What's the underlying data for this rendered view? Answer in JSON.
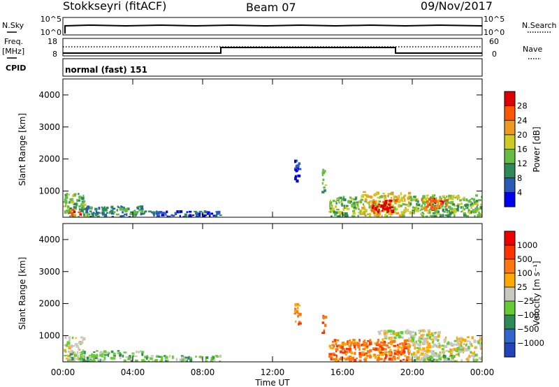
{
  "header": {
    "station": "Stokkseyri (fitACF)",
    "beam": "Beam 07",
    "date": "09/Nov/2017"
  },
  "strips": {
    "nsky_label": "N.Sky",
    "nsky_ticks": [
      "10^5",
      "10^0"
    ],
    "nsearch_label": "N.Search",
    "nsearch_ticks": [
      "10^5",
      "10^0"
    ],
    "freq_label": "Freq.",
    "freq_unit": "[MHz]",
    "freq_ticks": [
      "18",
      "8"
    ],
    "nave_label": "Nave",
    "nave_ticks": [
      "60",
      "0"
    ],
    "cpid_label": "CPID",
    "cpid_value": "normal (fast) 151"
  },
  "axes": {
    "ylabel": "Slant Range [km]",
    "xlabel": "Time UT",
    "yticks": [
      "1000",
      "2000",
      "3000",
      "4000"
    ],
    "xticks": [
      "00:00",
      "04:00",
      "08:00",
      "12:00",
      "16:00",
      "20:00",
      "00:00"
    ]
  },
  "colorbars": {
    "power": {
      "label": "Power [dB]",
      "ticks": [
        "4",
        "8",
        "12",
        "16",
        "20",
        "24",
        "28"
      ],
      "colors": [
        "#0000ee",
        "#2a5bb8",
        "#2e8b57",
        "#66bb44",
        "#cccc22",
        "#ee9922",
        "#ff5500",
        "#dd0000"
      ]
    },
    "velocity": {
      "label": "Velocity [m s⁻¹]",
      "ticks": [
        "1000",
        "500",
        "100",
        "25",
        "−25",
        "−100",
        "−500",
        "−1000"
      ],
      "colors": [
        "#2244bb",
        "#3366cc",
        "#2e8b57",
        "#66cc33",
        "#c8c8c0",
        "#ffaa00",
        "#ff7711",
        "#ff3300",
        "#ee0000"
      ]
    }
  },
  "chart_data": [
    {
      "type": "heatmap",
      "title": "Power",
      "xlabel": "Time UT",
      "ylabel": "Slant Range [km]",
      "x_range_hours": [
        0,
        24
      ],
      "ylim": [
        180,
        4500
      ],
      "colorbar_label": "Power [dB]",
      "patches": [
        {
          "t0": 0.0,
          "t1": 1.2,
          "r0": 200,
          "r1": 950,
          "level": 3
        },
        {
          "t0": 0.3,
          "t1": 1.0,
          "r0": 250,
          "r1": 450,
          "level": 6
        },
        {
          "t0": 1.0,
          "t1": 4.5,
          "r0": 220,
          "r1": 550,
          "level": 2
        },
        {
          "t0": 4.5,
          "t1": 9.0,
          "r0": 220,
          "r1": 400,
          "level": 1
        },
        {
          "t0": 13.2,
          "t1": 13.5,
          "r0": 1350,
          "r1": 2100,
          "level": 1
        },
        {
          "t0": 14.8,
          "t1": 15.0,
          "r0": 1000,
          "r1": 1700,
          "level": 3
        },
        {
          "t0": 15.2,
          "t1": 17.0,
          "r0": 230,
          "r1": 850,
          "level": 3
        },
        {
          "t0": 17.0,
          "t1": 19.8,
          "r0": 230,
          "r1": 1000,
          "level": 4
        },
        {
          "t0": 17.6,
          "t1": 19.0,
          "r0": 350,
          "r1": 750,
          "level": 7
        },
        {
          "t0": 19.8,
          "t1": 24.0,
          "r0": 230,
          "r1": 900,
          "level": 3
        },
        {
          "t0": 20.5,
          "t1": 22.0,
          "r0": 450,
          "r1": 800,
          "level": 6
        }
      ]
    },
    {
      "type": "heatmap",
      "title": "Velocity",
      "xlabel": "Time UT",
      "ylabel": "Slant Range [km]",
      "x_range_hours": [
        0,
        24
      ],
      "ylim": [
        180,
        4500
      ],
      "colorbar_label": "Velocity [m s⁻¹]",
      "patches": [
        {
          "t0": 0.0,
          "t1": 1.2,
          "r0": 200,
          "r1": 1000,
          "level": 4
        },
        {
          "t0": 0.3,
          "t1": 1.0,
          "r0": 250,
          "r1": 450,
          "level": 3
        },
        {
          "t0": 1.0,
          "t1": 4.5,
          "r0": 220,
          "r1": 550,
          "level": 3
        },
        {
          "t0": 4.5,
          "t1": 9.0,
          "r0": 220,
          "r1": 400,
          "level": 3
        },
        {
          "t0": 13.2,
          "t1": 13.5,
          "r0": 1350,
          "r1": 2100,
          "level": 6
        },
        {
          "t0": 14.8,
          "t1": 15.0,
          "r0": 1000,
          "r1": 1700,
          "level": 6
        },
        {
          "t0": 15.2,
          "t1": 19.8,
          "r0": 230,
          "r1": 900,
          "level": 6
        },
        {
          "t0": 18.0,
          "t1": 21.5,
          "r0": 900,
          "r1": 1200,
          "level": 4
        },
        {
          "t0": 19.8,
          "t1": 24.0,
          "r0": 230,
          "r1": 1000,
          "level": 4
        },
        {
          "t0": 20.0,
          "t1": 22.5,
          "r0": 230,
          "r1": 400,
          "level": 3
        }
      ]
    }
  ]
}
